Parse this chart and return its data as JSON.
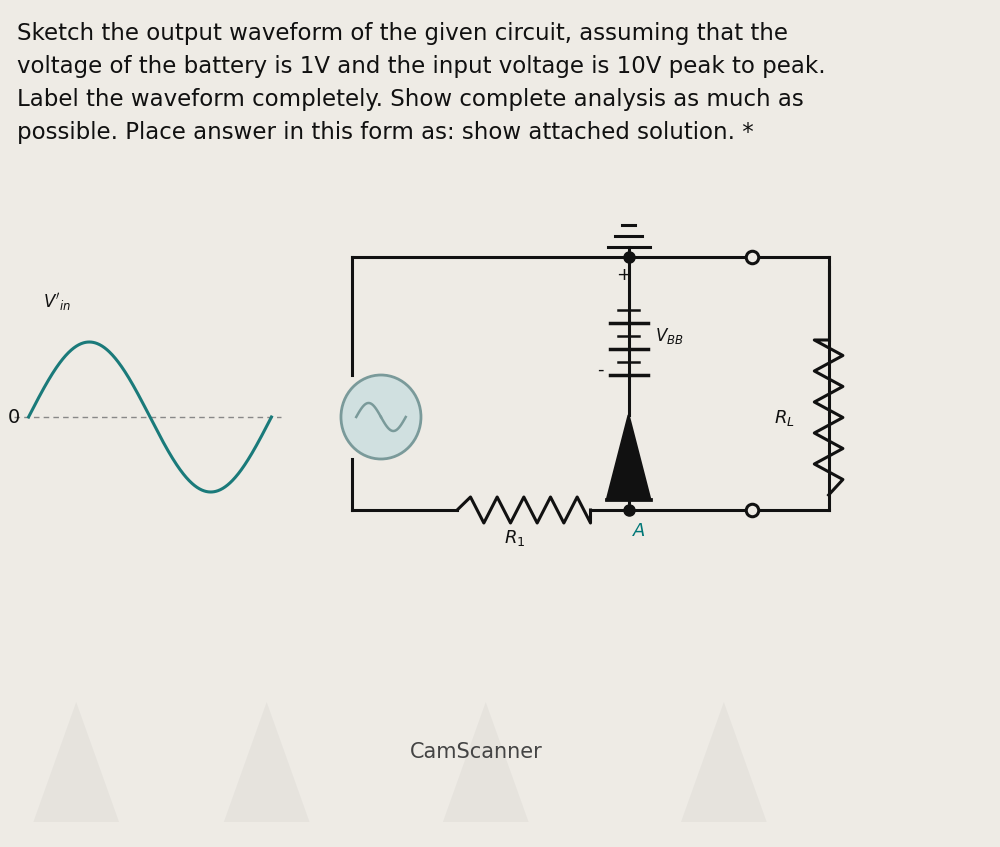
{
  "title_text": "Sketch the output waveform of the given circuit, assuming that the\nvoltage of the battery is 1V and the input voltage is 10V peak to peak.\nLabel the waveform completely. Show complete analysis as much as\npossible. Place answer in this form as: show attached solution. *",
  "camscanner_text": "CamScanner",
  "bg_color": "#eeebe5",
  "text_color": "#111111",
  "wave_color": "#1a7a7a",
  "circuit_color": "#111111",
  "src_color": "#7a9a9a",
  "node_color": "#008888",
  "title_fontsize": 16.5,
  "cam_fontsize": 15,
  "vin_label": "V'in",
  "node_label": "A",
  "r1_label": "R1",
  "rl_label": "RL",
  "vbb_label": "VBB",
  "zero_label": "0"
}
